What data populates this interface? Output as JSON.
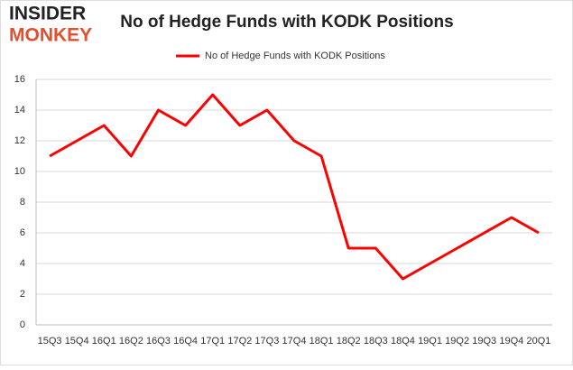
{
  "logo": {
    "line1": "INSIDER",
    "line2": "MONKEY"
  },
  "chart_data": {
    "type": "line",
    "title": "No of Hedge Funds with KODK Positions",
    "categories": [
      "15Q3",
      "15Q4",
      "16Q1",
      "16Q2",
      "16Q3",
      "16Q4",
      "17Q1",
      "17Q2",
      "17Q3",
      "17Q4",
      "18Q1",
      "18Q2",
      "18Q3",
      "18Q4",
      "19Q1",
      "19Q2",
      "19Q3",
      "19Q4",
      "20Q1"
    ],
    "series": [
      {
        "name": "No of Hedge Funds with KODK Positions",
        "color": "#ff0000",
        "values": [
          11,
          12,
          13,
          11,
          14,
          13,
          15,
          13,
          14,
          12,
          11,
          5,
          5,
          3,
          4,
          5,
          6,
          7,
          6
        ]
      }
    ],
    "ylim": [
      0,
      16
    ],
    "yticks": [
      0,
      2,
      4,
      6,
      8,
      10,
      12,
      14,
      16
    ],
    "grid": true,
    "legend": "top"
  }
}
